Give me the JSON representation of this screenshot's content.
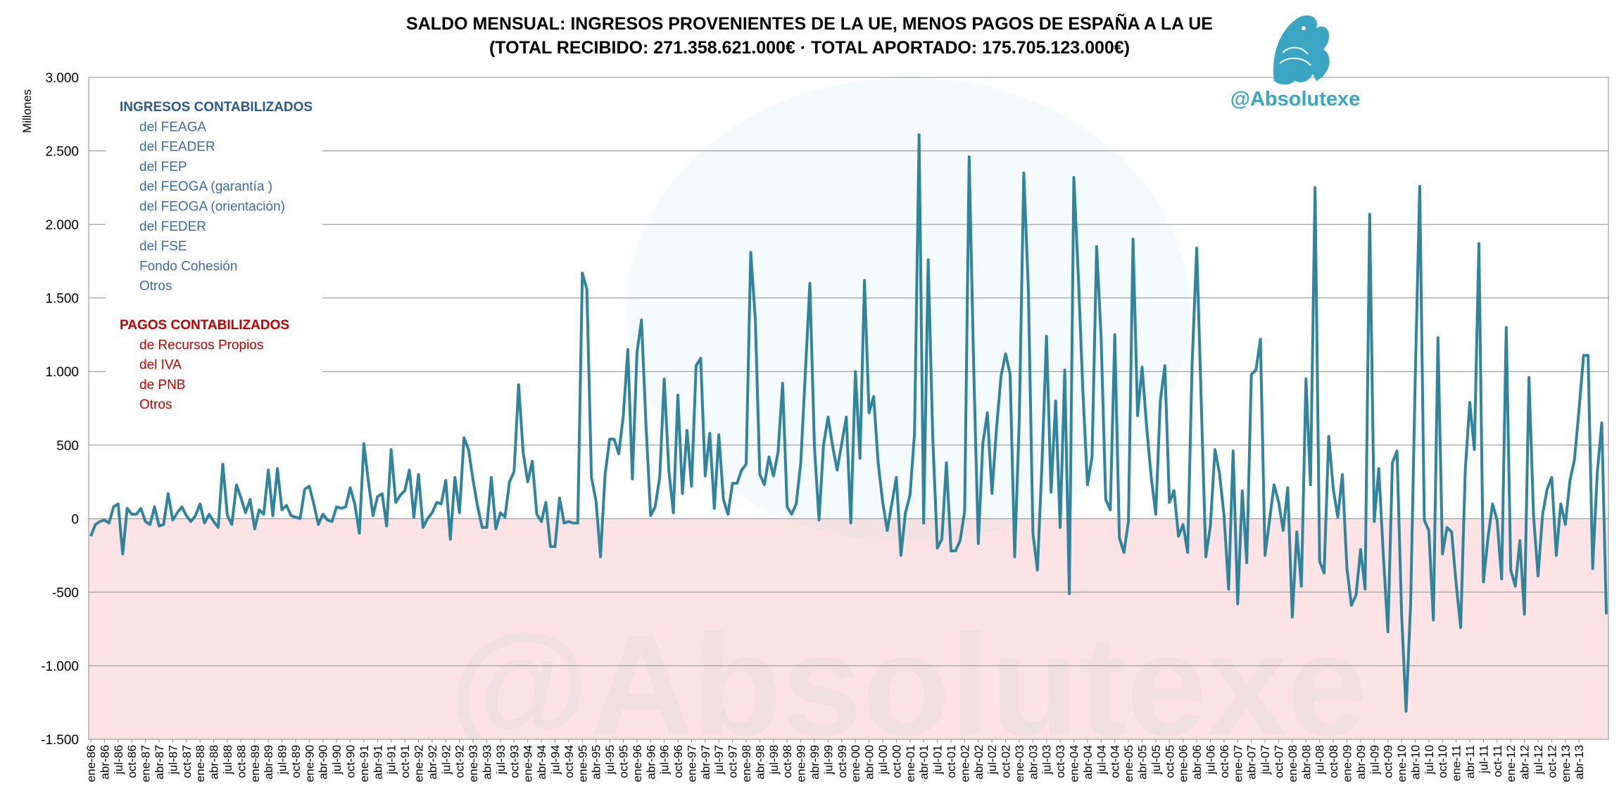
{
  "colors": {
    "line": "#31849b",
    "positive_bg": "#ffffff",
    "negative_bg": "#fde3e5",
    "grid": "#8c8c8c",
    "ingresos": "#2c5a8c",
    "pagos": "#c00000",
    "handle": "#3aa6c4"
  },
  "header": {
    "title_line1": "SALDO MENSUAL: INGRESOS PROVENIENTES DE LA UE, MENOS PAGOS DE ESPAÑA A LA UE",
    "title_line2": "(TOTAL RECIBIDO:  271.358.621.000€ · TOTAL APORTADO: 175.705.123.000€)"
  },
  "branding": {
    "handle": "@Absolutexe",
    "logo_icon": "griffin-logo-icon",
    "watermark": "@Absolutexe"
  },
  "legend": {
    "ingresos_title": "INGRESOS CONTABILIZADOS",
    "ingresos_items": [
      "del FEAGA",
      "del FEADER",
      "del FEP",
      "del FEOGA (garantía )",
      "del FEOGA (orientación)",
      "del FEDER",
      "del FSE",
      "Fondo Cohesión",
      "Otros"
    ],
    "pagos_title": "PAGOS CONTABILIZADOS",
    "pagos_items": [
      "de Recursos Propios",
      "del IVA",
      "de PNB",
      "Otros"
    ]
  },
  "chart_data": {
    "type": "line",
    "ylabel": "Millones",
    "ylim": [
      -1500,
      3000
    ],
    "ytick_values": [
      -1500,
      -1000,
      -500,
      0,
      500,
      1000,
      1500,
      2000,
      2500,
      3000
    ],
    "ytick_labels": [
      "-1.500",
      "-1.000",
      "-500",
      "0",
      "500",
      "1.000",
      "1.500",
      "2.000",
      "2.500",
      "3.000"
    ],
    "grid": true,
    "x_start": "ene-86",
    "x_end": "jun-13",
    "x_labels": [
      "ene-86",
      "abr-86",
      "jul-86",
      "oct-86",
      "ene-87",
      "abr-87",
      "jul-87",
      "oct-87",
      "ene-88",
      "abr-88",
      "jul-88",
      "oct-88",
      "ene-89",
      "abr-89",
      "jul-89",
      "oct-89",
      "ene-90",
      "abr-90",
      "jul-90",
      "oct-90",
      "ene-91",
      "abr-91",
      "jul-91",
      "oct-91",
      "ene-92",
      "abr-92",
      "jul-92",
      "oct-92",
      "ene-93",
      "abr-93",
      "jul-93",
      "oct-93",
      "ene-94",
      "abr-94",
      "jul-94",
      "oct-94",
      "ene-95",
      "abr-95",
      "jul-95",
      "oct-95",
      "ene-96",
      "abr-96",
      "jul-96",
      "oct-96",
      "ene-97",
      "abr-97",
      "jul-97",
      "oct-97",
      "ene-98",
      "abr-98",
      "jul-98",
      "oct-98",
      "ene-99",
      "abr-99",
      "jul-99",
      "oct-99",
      "ene-00",
      "abr-00",
      "jul-00",
      "oct-00",
      "ene-01",
      "abr-01",
      "jul-01",
      "oct-01",
      "ene-02",
      "abr-02",
      "jul-02",
      "oct-02",
      "ene-03",
      "abr-03",
      "jul-03",
      "oct-03",
      "ene-04",
      "abr-04",
      "jul-04",
      "oct-04",
      "ene-05",
      "abr-05",
      "jul-05",
      "oct-05",
      "ene-06",
      "abr-06",
      "jul-06",
      "oct-06",
      "ene-07",
      "abr-07",
      "jul-07",
      "oct-07",
      "ene-08",
      "abr-08",
      "jul-08",
      "oct-08",
      "ene-09",
      "abr-09",
      "jul-09",
      "oct-09",
      "ene-10",
      "abr-10",
      "jul-10",
      "oct-10",
      "ene-11",
      "abr-11",
      "jul-11",
      "oct-11",
      "ene-12",
      "abr-12",
      "jul-12",
      "oct-12",
      "ene-13",
      "abr-13"
    ],
    "series": [
      {
        "values": [
          -120,
          -40,
          -20,
          -10,
          -30,
          80,
          100,
          -240,
          70,
          30,
          30,
          70,
          -20,
          -40,
          80,
          -50,
          -40,
          170,
          -10,
          40,
          80,
          20,
          -20,
          20,
          100,
          -30,
          30,
          -20,
          -60,
          370,
          20,
          -40,
          230,
          140,
          40,
          130,
          -70,
          60,
          30,
          330,
          20,
          340,
          60,
          90,
          20,
          10,
          0,
          200,
          220,
          100,
          -40,
          30,
          -10,
          -20,
          80,
          70,
          80,
          210,
          100,
          -100,
          510,
          250,
          20,
          150,
          170,
          -50,
          470,
          110,
          160,
          190,
          330,
          10,
          300,
          -60,
          0,
          40,
          110,
          100,
          260,
          -140,
          280,
          40,
          550,
          470,
          260,
          80,
          -60,
          -60,
          280,
          -70,
          40,
          10,
          250,
          320,
          910,
          450,
          250,
          390,
          30,
          -20,
          110,
          -190,
          -190,
          140,
          -30,
          -20,
          -30,
          -30,
          1670,
          1560,
          280,
          120,
          -260,
          300,
          540,
          540,
          440,
          700,
          1150,
          270,
          1130,
          1350,
          630,
          20,
          80,
          280,
          950,
          330,
          40,
          840,
          170,
          600,
          220,
          1040,
          1090,
          290,
          580,
          70,
          570,
          130,
          30,
          240,
          240,
          330,
          370,
          1810,
          1360,
          300,
          230,
          420,
          290,
          450,
          920,
          80,
          30,
          100,
          380,
          990,
          1600,
          490,
          -10,
          500,
          690,
          490,
          330,
          510,
          690,
          -30,
          1000,
          410,
          1620,
          720,
          830,
          380,
          110,
          -80,
          100,
          280,
          -250,
          40,
          160,
          580,
          2610,
          -30,
          1760,
          550,
          -200,
          -140,
          380,
          -220,
          -220,
          -150,
          50,
          2460,
          1020,
          -170,
          510,
          720,
          170,
          610,
          970,
          1120,
          980,
          -260,
          670,
          2350,
          1560,
          -100,
          -350,
          380,
          1240,
          180,
          800,
          -60,
          1010,
          -510,
          2320,
          1640,
          850,
          230,
          420,
          1850,
          1230,
          130,
          60,
          1250,
          -130,
          -230,
          -20,
          1900,
          700,
          1030,
          620,
          280,
          30,
          800,
          1040,
          110,
          190,
          -120,
          -40,
          -230,
          1060,
          1840,
          780,
          -260,
          -50,
          470,
          310,
          20,
          -480,
          460,
          -580,
          190,
          -300,
          980,
          1010,
          1220,
          -250,
          -10,
          230,
          110,
          -80,
          210,
          -670,
          -90,
          -460,
          950,
          230,
          2250,
          -290,
          -370,
          560,
          200,
          10,
          300,
          -340,
          -590,
          -520,
          -210,
          -480,
          2070,
          -20,
          340,
          -250,
          -770,
          380,
          460,
          -640,
          -1310,
          -580,
          950,
          2260,
          -10,
          -80,
          -690,
          1230,
          -240,
          -60,
          -90,
          -440,
          -740,
          330,
          790,
          470,
          1870,
          -430,
          -130,
          100,
          -10,
          -410,
          1300,
          -350,
          -460,
          -150,
          -650,
          960,
          20,
          -390,
          30,
          200,
          280,
          -250,
          100,
          -40,
          260,
          400,
          740,
          1110,
          1110,
          -340,
          310,
          650,
          -650
        ]
      }
    ]
  }
}
